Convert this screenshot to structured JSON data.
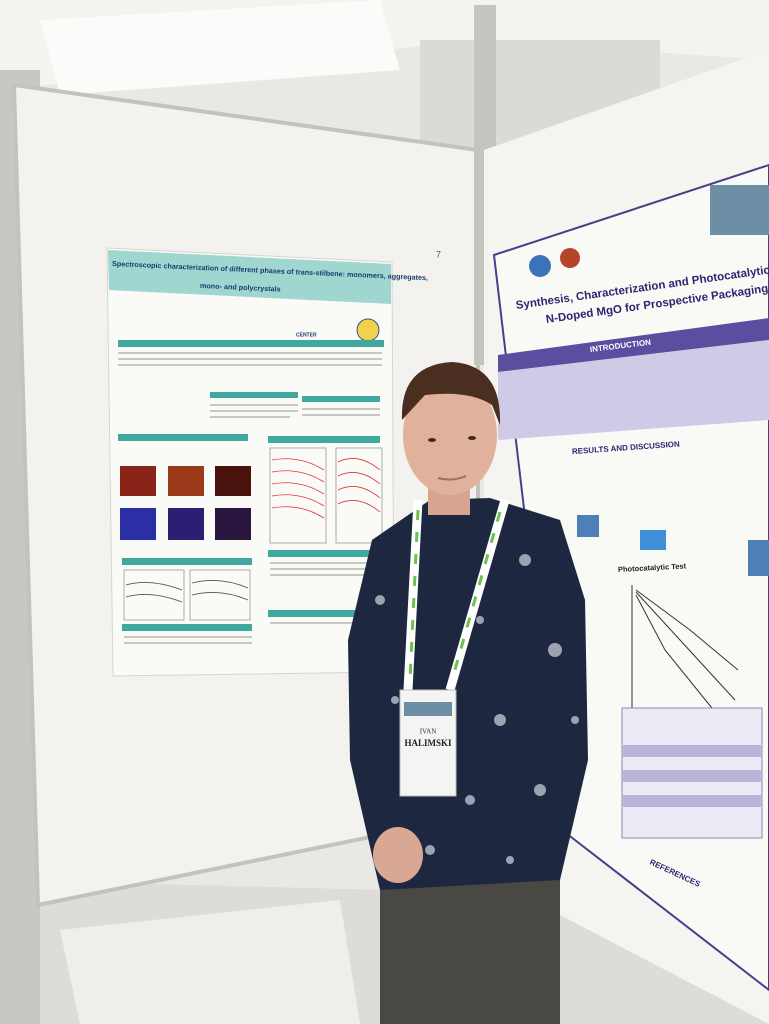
{
  "left_poster": {
    "board_number": "7",
    "title_lines": [
      "Spectroscopic characterization of different phases of trans-stilbene: monomers, aggregates,",
      "mono- and polycrystals"
    ],
    "logo": "CENTER"
  },
  "right_poster": {
    "title_lines": [
      "Synthesis, Characterization and Photocatalytic Performance of",
      "N-Doped MgO for Prospective Packaging Use"
    ],
    "sections": [
      "INTRODUCTION",
      "RESULTS AND DISCUSSION",
      "Photocatalytic Test",
      "REFERENCES"
    ]
  },
  "badge": {
    "first_name": "IVAN",
    "last_name": "HALIMSKI"
  }
}
